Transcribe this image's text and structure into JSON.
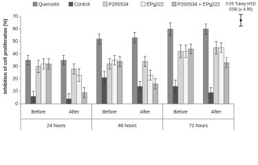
{
  "chart_data": {
    "type": "bar",
    "y_label": "Inhibition of cell proliferation (%)",
    "categories": [
      "Before",
      "After",
      "Before",
      "After",
      "Before",
      "After"
    ],
    "groups": [
      "24 hours",
      "48 hours",
      "72 hours"
    ],
    "series": [
      {
        "name": "Quercetin",
        "color": "#8a8a8a",
        "values": [
          35,
          35,
          52,
          53,
          60,
          60
        ],
        "errors": [
          4,
          4,
          4,
          4,
          5,
          4
        ]
      },
      {
        "name": "Control",
        "color": "#555555",
        "values": [
          6,
          4,
          21,
          14,
          14,
          9
        ],
        "errors": [
          4,
          4,
          5,
          4,
          5,
          4
        ]
      },
      {
        "name": "P200S34",
        "color": "#d4d4d4",
        "values": [
          30,
          28,
          32,
          34,
          42,
          45
        ],
        "errors": [
          5,
          4,
          4,
          4,
          5,
          5
        ]
      },
      {
        "name": "EPg222",
        "color": "#f4f4f4",
        "values": [
          32,
          23,
          35,
          23,
          42,
          45
        ],
        "errors": [
          4,
          5,
          4,
          4,
          5,
          4
        ]
      },
      {
        "name": "P200S34 + EPg222",
        "color": "#b8b8b8",
        "values": [
          32,
          9,
          34,
          16,
          44,
          33
        ],
        "errors": [
          4,
          4,
          4,
          4,
          4,
          4
        ]
      }
    ],
    "ylim": [
      0,
      70
    ],
    "yticks": [
      0,
      10,
      20,
      30,
      40,
      50,
      60,
      70
    ],
    "annotation": [
      "0.05 Tukey HSD",
      "SSB (± 4.90)"
    ]
  }
}
